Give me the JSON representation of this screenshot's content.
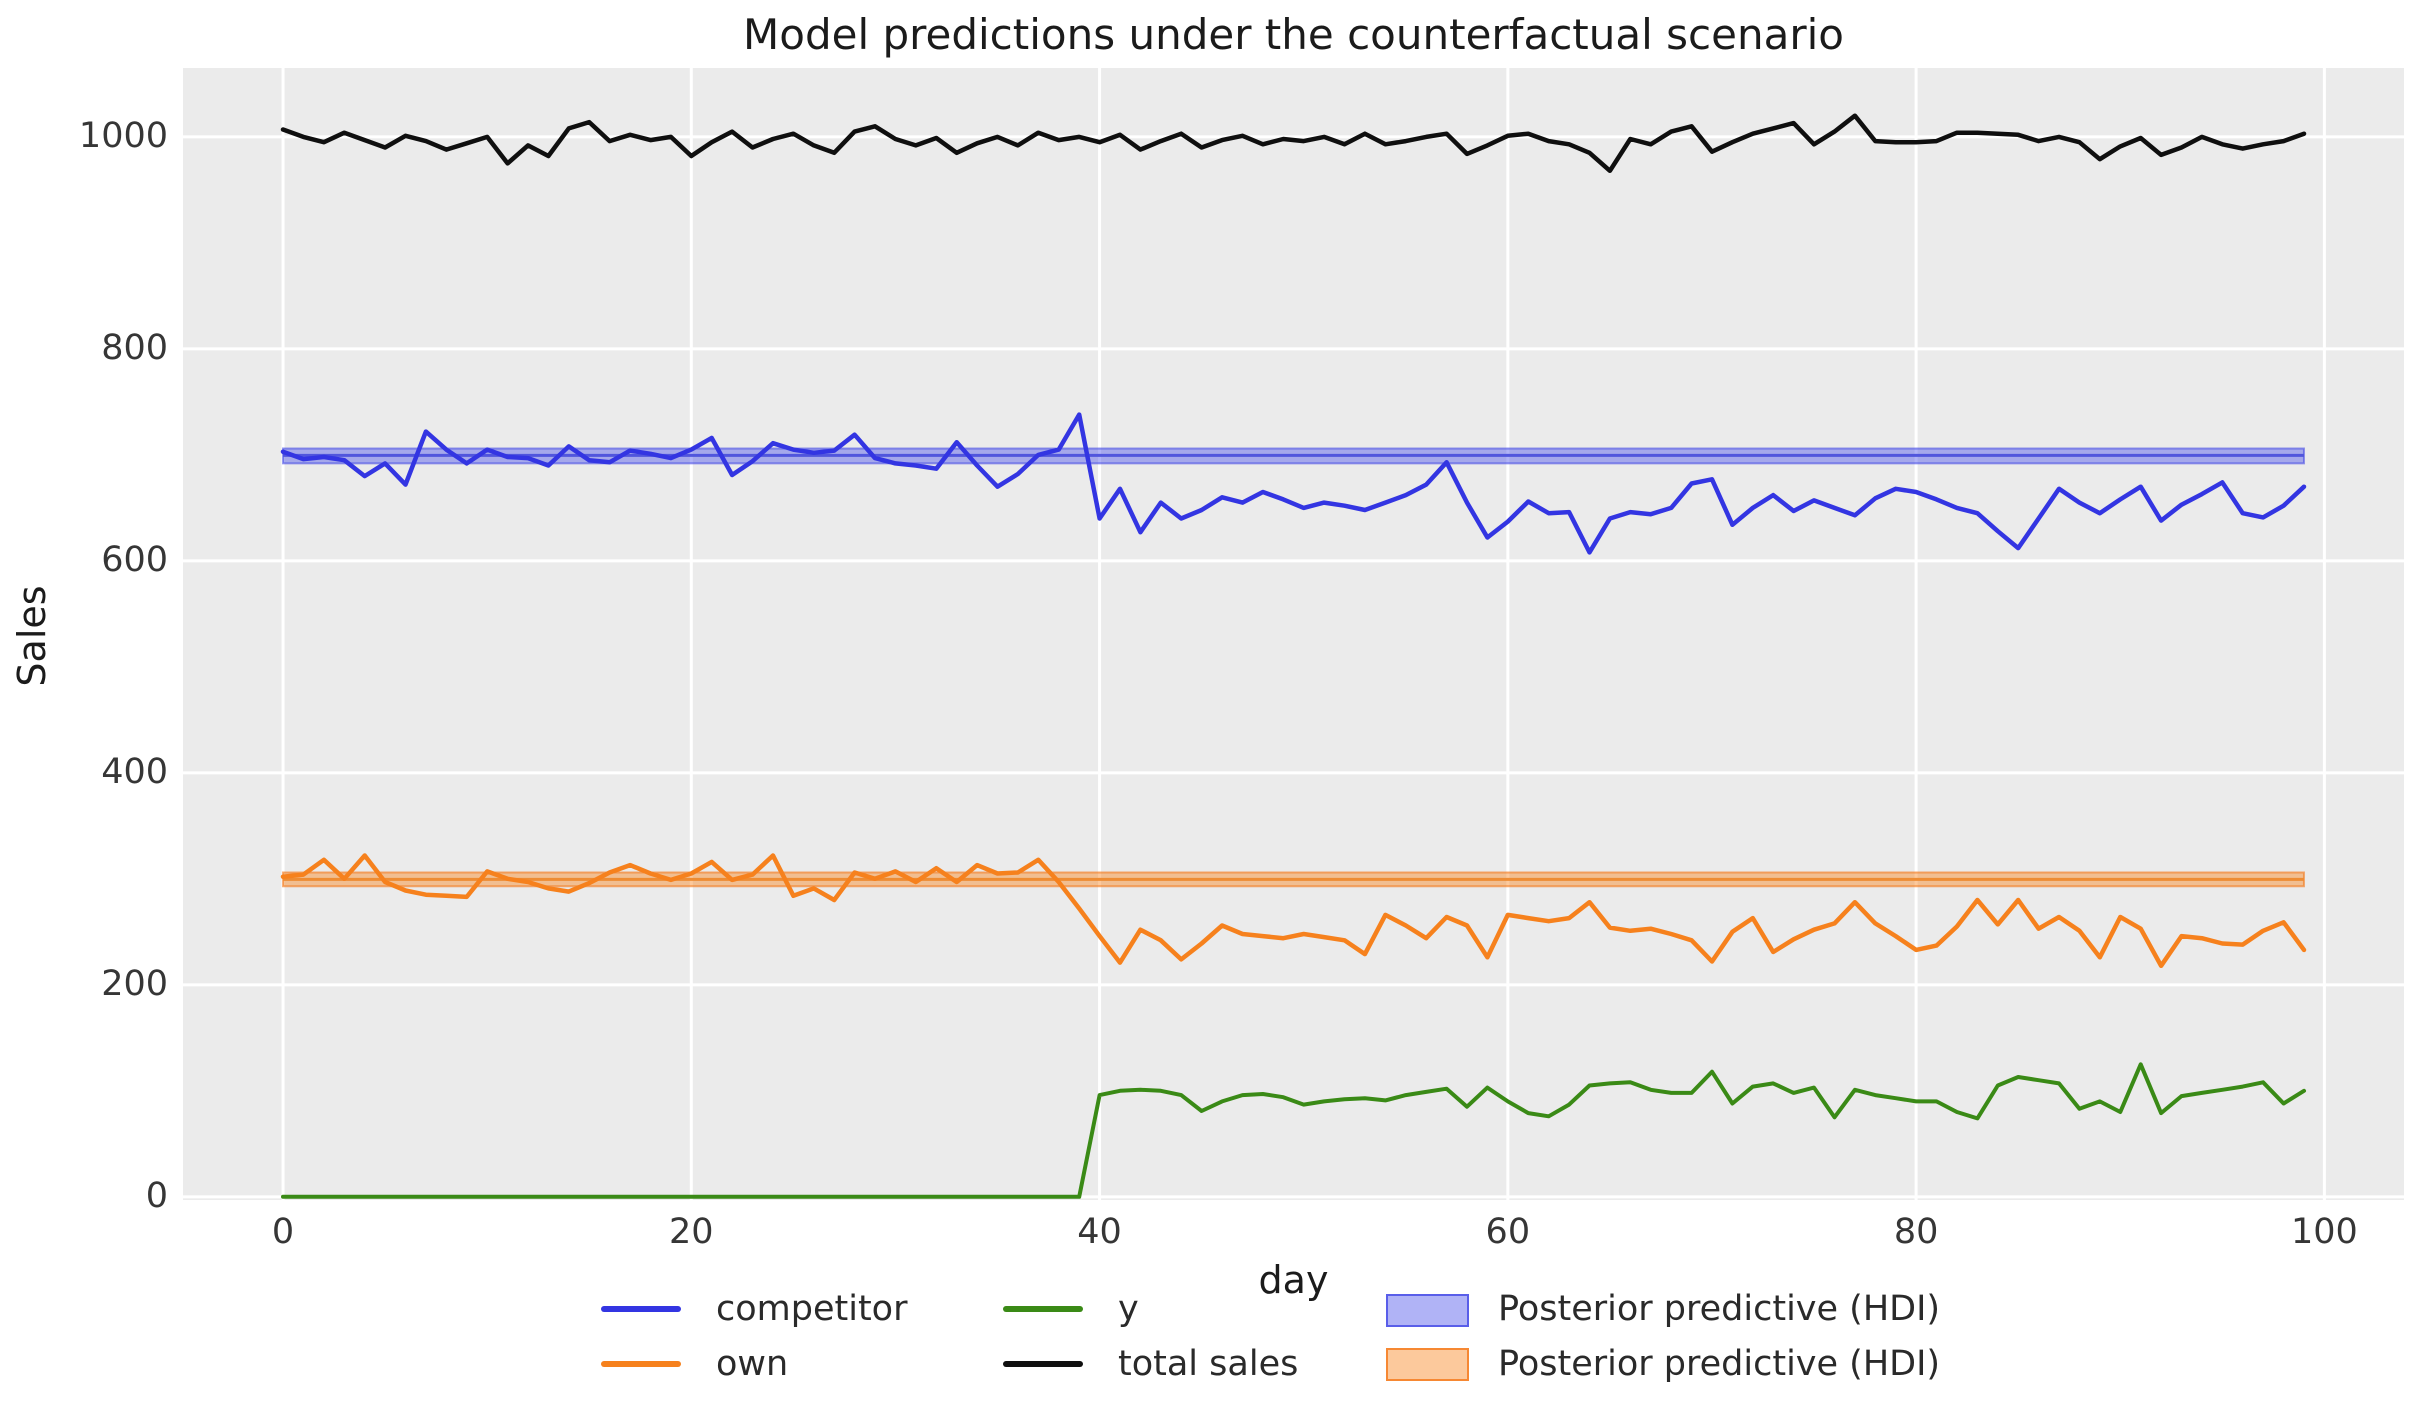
{
  "chart_data": {
    "type": "line",
    "title": "Model predictions under the counterfactual scenario",
    "xlabel": "day",
    "ylabel": "Sales",
    "xlim": [
      -4.9,
      103.9
    ],
    "ylim": [
      -3,
      1065
    ],
    "xticks": [
      0,
      20,
      40,
      60,
      80,
      100
    ],
    "yticks": [
      0,
      200,
      400,
      600,
      800,
      1000
    ],
    "grid": true,
    "plot_background": "#ebebeb",
    "grid_color": "#ffffff",
    "legend_position": "below",
    "x": [
      0,
      1,
      2,
      3,
      4,
      5,
      6,
      7,
      8,
      9,
      10,
      11,
      12,
      13,
      14,
      15,
      16,
      17,
      18,
      19,
      20,
      21,
      22,
      23,
      24,
      25,
      26,
      27,
      28,
      29,
      30,
      31,
      32,
      33,
      34,
      35,
      36,
      37,
      38,
      39,
      40,
      41,
      42,
      43,
      44,
      45,
      46,
      47,
      48,
      49,
      50,
      51,
      52,
      53,
      54,
      55,
      56,
      57,
      58,
      59,
      60,
      61,
      62,
      63,
      64,
      65,
      66,
      67,
      68,
      69,
      70,
      71,
      72,
      73,
      74,
      75,
      76,
      77,
      78,
      79,
      80,
      81,
      82,
      83,
      84,
      85,
      86,
      87,
      88,
      89,
      90,
      91,
      92,
      93,
      94,
      95,
      96,
      97,
      98,
      99
    ],
    "series": [
      {
        "name": "competitor",
        "color": "#3335e2",
        "width": 4.5,
        "values": [
          703,
          696,
          698,
          695,
          680,
          692,
          672,
          722,
          705,
          692,
          705,
          698,
          697,
          690,
          708,
          695,
          693,
          704,
          701,
          697,
          705,
          716,
          681,
          694,
          711,
          705,
          702,
          704,
          719,
          697,
          692,
          690,
          687,
          712,
          690,
          670,
          682,
          700,
          705,
          738,
          640,
          668,
          627,
          655,
          640,
          648,
          660,
          655,
          665,
          658,
          650,
          655,
          652,
          648,
          655,
          662,
          672,
          693,
          655,
          622,
          637,
          656,
          645,
          646,
          608,
          640,
          646,
          644,
          650,
          673,
          677,
          634,
          650,
          662,
          647,
          657,
          650,
          643,
          659,
          668,
          665,
          658,
          650,
          645,
          628,
          612,
          640,
          668,
          655,
          645,
          658,
          670,
          638,
          653,
          663,
          674,
          645,
          641,
          652,
          670
        ]
      },
      {
        "name": "own",
        "color": "#f6811d",
        "width": 4.5,
        "values": [
          302,
          304,
          318,
          300,
          322,
          297,
          289,
          285,
          284,
          283,
          307,
          300,
          297,
          291,
          288,
          296,
          306,
          313,
          305,
          299,
          305,
          316,
          299,
          304,
          322,
          284,
          291,
          280,
          306,
          300,
          307,
          297,
          310,
          297,
          313,
          305,
          306,
          318,
          297,
          272,
          246,
          221,
          252,
          242,
          224,
          239,
          256,
          248,
          246,
          244,
          248,
          245,
          242,
          229,
          266,
          256,
          244,
          264,
          256,
          226,
          266,
          263,
          260,
          263,
          278,
          254,
          251,
          253,
          248,
          242,
          222,
          250,
          263,
          231,
          243,
          252,
          258,
          278,
          258,
          246,
          233,
          237,
          255,
          280,
          257,
          280,
          253,
          264,
          251,
          226,
          264,
          253,
          218,
          246,
          244,
          239,
          238,
          251,
          259,
          233
        ]
      },
      {
        "name": "y",
        "color": "#3a8a16",
        "width": 4,
        "values": [
          0,
          0,
          0,
          0,
          0,
          0,
          0,
          0,
          0,
          0,
          0,
          0,
          0,
          0,
          0,
          0,
          0,
          0,
          0,
          0,
          0,
          0,
          0,
          0,
          0,
          0,
          0,
          0,
          0,
          0,
          0,
          0,
          0,
          0,
          0,
          0,
          0,
          0,
          0,
          0,
          96,
          100,
          101,
          100,
          96,
          81,
          90,
          96,
          97,
          94,
          87,
          90,
          92,
          93,
          91,
          96,
          99,
          102,
          85,
          103,
          90,
          79,
          76,
          87,
          105,
          107,
          108,
          101,
          98,
          98,
          118,
          88,
          104,
          107,
          98,
          103,
          75,
          101,
          96,
          93,
          90,
          90,
          80,
          74,
          105,
          113,
          110,
          107,
          83,
          90,
          80,
          125,
          79,
          95,
          98,
          101,
          104,
          108,
          88,
          100
        ]
      },
      {
        "name": "total sales",
        "color": "#0f0f0f",
        "width": 4.5,
        "values": [
          1007,
          1000,
          995,
          1004,
          997,
          990,
          1001,
          996,
          988,
          994,
          1000,
          975,
          992,
          982,
          1008,
          1014,
          996,
          1002,
          997,
          1000,
          982,
          995,
          1005,
          990,
          998,
          1003,
          992,
          985,
          1005,
          1010,
          998,
          992,
          999,
          985,
          994,
          1000,
          992,
          1004,
          997,
          1000,
          995,
          1002,
          988,
          996,
          1003,
          990,
          997,
          1001,
          993,
          998,
          996,
          1000,
          993,
          1003,
          993,
          996,
          1000,
          1003,
          984,
          992,
          1001,
          1003,
          996,
          993,
          985,
          968,
          998,
          993,
          1005,
          1010,
          986,
          995,
          1003,
          1008,
          1013,
          993,
          1005,
          1020,
          996,
          995,
          995,
          996,
          1004,
          1004,
          1003,
          1002,
          996,
          1000,
          995,
          979,
          991,
          999,
          983,
          990,
          1000,
          993,
          989,
          993,
          996,
          1003
        ]
      }
    ],
    "bands": [
      {
        "name": "Posterior predictive (HDI)",
        "low": 692,
        "high": 706,
        "mean": 699.5,
        "x_start": 0,
        "x_end": 99,
        "fill": "rgba(80,87,235,0.45)",
        "edge": "rgba(60,66,228,0.55)",
        "mean_color": "#5156dd"
      },
      {
        "name": "Posterior predictive (HDI)",
        "low": 293,
        "high": 306,
        "mean": 299.5,
        "x_start": 0,
        "x_end": 99,
        "fill": "rgba(248,135,35,0.45)",
        "edge": "rgba(244,120,25,0.6)",
        "mean_color": "#ee8c33"
      }
    ]
  },
  "legend": {
    "items": [
      {
        "label": "competitor",
        "swatch": "line",
        "color": "#3335e2"
      },
      {
        "label": "own",
        "swatch": "line",
        "color": "#f6811d"
      },
      {
        "label": "y",
        "swatch": "line",
        "color": "#3a8a16"
      },
      {
        "label": "total sales",
        "swatch": "line",
        "color": "#0f0f0f"
      },
      {
        "label": "Posterior predictive (HDI)",
        "swatch": "patch",
        "fill": "rgba(80,87,235,0.45)",
        "edge": "rgba(60,66,228,0.75)"
      },
      {
        "label": "Posterior predictive (HDI)",
        "swatch": "patch",
        "fill": "rgba(248,135,35,0.45)",
        "edge": "rgba(244,120,25,0.8)"
      }
    ]
  }
}
